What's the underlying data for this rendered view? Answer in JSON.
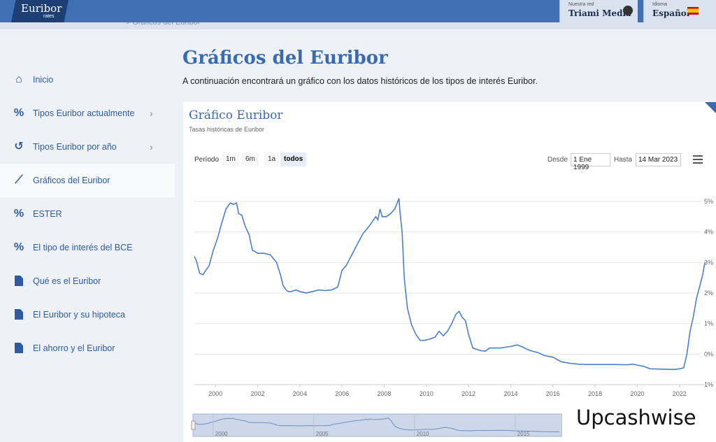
{
  "topbar": {
    "logo": "Euribor",
    "logo_sub": "rates",
    "network_small": "Nuestra red",
    "network_name": "Triami Media",
    "lang_small": "Idioma",
    "lang_name": "Español"
  },
  "sidebar": {
    "items": [
      {
        "label": "Inicio",
        "icon": "home-icon"
      },
      {
        "label": "Tipos Euribor actualmente",
        "icon": "percent-icon",
        "chevron": true
      },
      {
        "label": "Tipos Euribor por año",
        "icon": "history-icon",
        "chevron": true
      },
      {
        "label": "Gráficos del Euribor",
        "icon": "chart-line-icon",
        "active": true
      },
      {
        "label": "ESTER",
        "icon": "percent-icon"
      },
      {
        "label": "El tipo de interés del BCE",
        "icon": "percent-icon"
      },
      {
        "label": "Qué es el Euribor",
        "icon": "document-icon"
      },
      {
        "label": "El Euribor y su hipoteca",
        "icon": "document-icon"
      },
      {
        "label": "El ahorro y el Euribor",
        "icon": "document-icon"
      }
    ]
  },
  "main": {
    "title": "Gráficos del Euribor",
    "intro": "A continuación encontrará un gráfico con los datos históricos de los tipos de interés Euribor."
  },
  "chart": {
    "title": "Gráfico Euribor",
    "subtitle": "Tasas históricas de Euribor",
    "period_label": "Período",
    "ranges": [
      "1m",
      "6m",
      "1a",
      "todos"
    ],
    "selected_range": "todos",
    "from_label": "Desde",
    "from_value": "1 Ene 1999",
    "to_label": "Hasta",
    "to_value": "14 Mar 2023"
  },
  "chart_data": {
    "type": "line",
    "ylim": [
      -1,
      5
    ],
    "xlim": [
      1999,
      2023.2
    ],
    "x_ticks": [
      "2000",
      "2002",
      "2004",
      "2006",
      "2008",
      "2010",
      "2012",
      "2014",
      "2016",
      "2018",
      "2020",
      "2022"
    ],
    "y_ticks": [
      "−1%",
      "0%",
      "1%",
      "2%",
      "3%",
      "4%",
      "5%"
    ],
    "navigator_ticks": [
      "2000",
      "2005",
      "2010",
      "2015"
    ],
    "series": [
      {
        "x": [
          1999.0,
          1999.1,
          1999.25,
          1999.4,
          1999.7,
          1999.9,
          2000.1,
          2000.3,
          2000.5,
          2000.7,
          2000.85,
          2001.0,
          2001.1,
          2001.25,
          2001.4,
          2001.6,
          2001.75,
          2001.9,
          2002.0,
          2002.3,
          2002.6,
          2002.9,
          2003.1,
          2003.2,
          2003.35,
          2003.45,
          2003.6,
          2003.8,
          2004.0,
          2004.3,
          2004.6,
          2004.9,
          2005.2,
          2005.5,
          2005.8,
          2006.0,
          2006.2,
          2006.5,
          2006.8,
          2007.0,
          2007.3,
          2007.6,
          2007.7,
          2007.8,
          2007.9,
          2008.1,
          2008.3,
          2008.5,
          2008.7,
          2008.75,
          2008.85,
          2008.95,
          2009.1,
          2009.3,
          2009.5,
          2009.7,
          2009.9,
          2010.2,
          2010.4,
          2010.6,
          2010.8,
          2011.0,
          2011.2,
          2011.4,
          2011.55,
          2011.7,
          2011.85,
          2012.0,
          2012.2,
          2012.4,
          2012.6,
          2012.8,
          2013.0,
          2013.5,
          2014.0,
          2014.3,
          2014.5,
          2014.8,
          2015.0,
          2015.3,
          2015.6,
          2016.0,
          2016.4,
          2016.8,
          2017.2,
          2017.6,
          2018.0,
          2018.5,
          2019.0,
          2019.5,
          2019.8,
          2020.0,
          2020.3,
          2020.6,
          2021.0,
          2021.5,
          2021.8,
          2022.0,
          2022.2,
          2022.35,
          2022.5,
          2022.65,
          2022.8,
          2022.95,
          2023.1,
          2023.2
        ],
        "y": [
          3.2,
          3.05,
          2.65,
          2.6,
          2.9,
          3.4,
          3.8,
          4.3,
          4.75,
          4.95,
          4.9,
          4.95,
          4.6,
          4.55,
          4.2,
          3.9,
          3.4,
          3.35,
          3.3,
          3.3,
          3.25,
          3.0,
          2.55,
          2.25,
          2.1,
          2.05,
          2.05,
          2.1,
          2.05,
          2.0,
          2.05,
          2.1,
          2.08,
          2.1,
          2.2,
          2.75,
          2.9,
          3.3,
          3.7,
          3.95,
          4.2,
          4.5,
          4.4,
          4.75,
          4.5,
          4.5,
          4.6,
          4.75,
          5.1,
          4.65,
          4.0,
          2.5,
          1.5,
          0.95,
          0.65,
          0.45,
          0.45,
          0.5,
          0.55,
          0.75,
          0.6,
          0.75,
          1.0,
          1.3,
          1.4,
          1.2,
          1.1,
          0.65,
          0.2,
          0.15,
          0.11,
          0.1,
          0.2,
          0.2,
          0.25,
          0.3,
          0.25,
          0.15,
          0.1,
          0.05,
          -0.05,
          -0.1,
          -0.25,
          -0.3,
          -0.33,
          -0.34,
          -0.34,
          -0.34,
          -0.34,
          -0.35,
          -0.33,
          -0.36,
          -0.4,
          -0.48,
          -0.49,
          -0.5,
          -0.5,
          -0.48,
          -0.45,
          0.0,
          0.75,
          1.2,
          1.8,
          2.2,
          2.6,
          3.0
        ]
      }
    ]
  },
  "watermark": "Upcashwise",
  "colors": {
    "accent": "#3a6bb1",
    "topbar": "#3f6fb4",
    "line": "#4a7fc9"
  }
}
